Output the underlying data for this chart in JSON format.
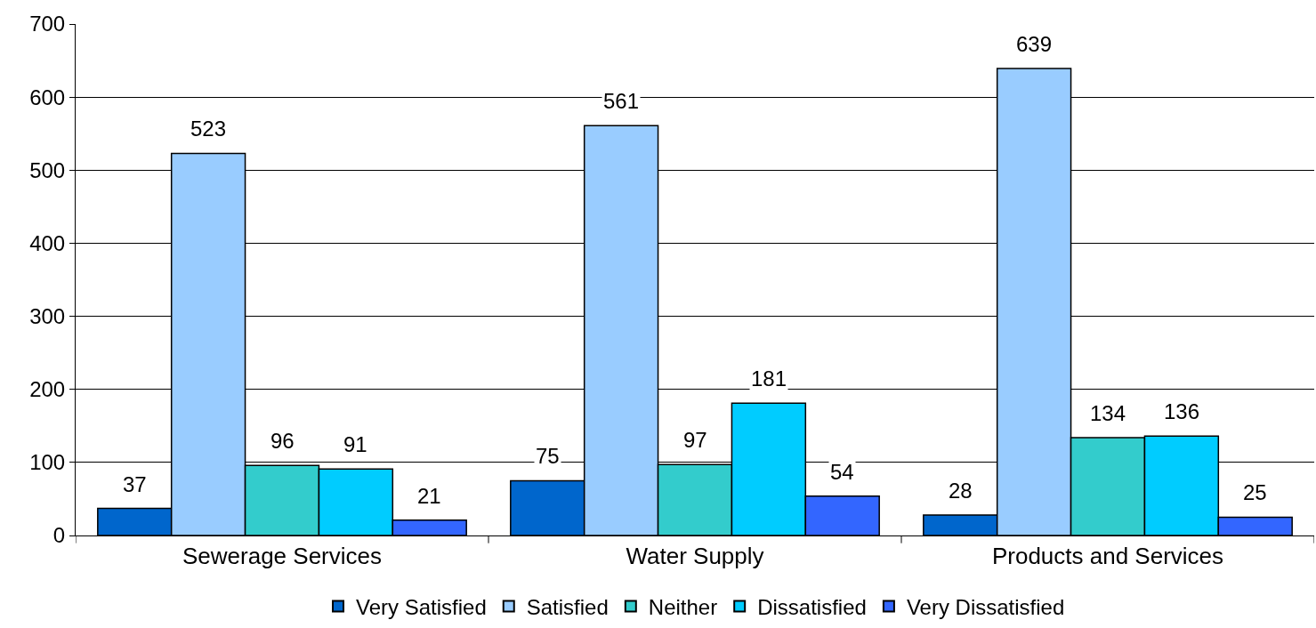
{
  "chart_data": {
    "type": "bar",
    "categories": [
      "Sewerage Services",
      "Water Supply",
      "Products and Services"
    ],
    "series": [
      {
        "name": "Very Satisfied",
        "color": "#0066cc",
        "values": [
          37,
          75,
          28
        ]
      },
      {
        "name": "Satisfied",
        "color": "#99ccff",
        "values": [
          523,
          561,
          639
        ]
      },
      {
        "name": "Neither",
        "color": "#33cccc",
        "values": [
          96,
          97,
          134
        ]
      },
      {
        "name": "Dissatisfied",
        "color": "#00ccff",
        "values": [
          91,
          181,
          136
        ]
      },
      {
        "name": "Very Dissatisfied",
        "color": "#3366ff",
        "values": [
          21,
          54,
          25
        ]
      }
    ],
    "ylim": [
      0,
      700
    ],
    "yticks": [
      0,
      100,
      200,
      300,
      400,
      500,
      600,
      700
    ],
    "grid": "y",
    "legend": "bottom",
    "data_labels": true
  }
}
